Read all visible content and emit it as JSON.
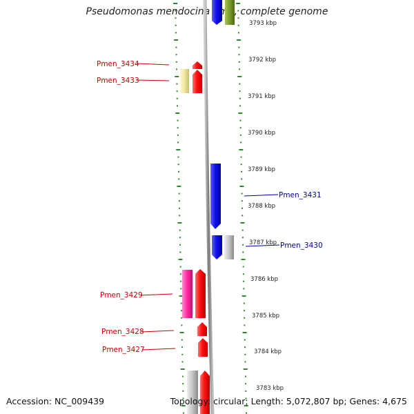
{
  "title": "Pseudomonas mendocina ymp, complete genome",
  "accession": "Accession: NC_009439",
  "stats": "Topology: circular; Length: 5,072,807 bp; Genes: 4,675",
  "ticks": [
    "3793 kbp",
    "3792 kbp",
    "3791 kbp",
    "3790 kbp",
    "3789 kbp",
    "3788 kbp",
    "3787 kbp",
    "3786 kbp",
    "3785 kbp",
    "3784 kbp",
    "3783 kbp"
  ],
  "genes": [
    {
      "label": "Pmen_3434",
      "strand": "reverse",
      "color": "#cc0000"
    },
    {
      "label": "Pmen_3433",
      "strand": "reverse",
      "color": "#cc0000"
    },
    {
      "label": "Pmen_3431",
      "strand": "forward",
      "color": "#000099"
    },
    {
      "label": "Pmen_3430",
      "strand": "forward",
      "color": "#000099"
    },
    {
      "label": "Pmen_3429",
      "strand": "reverse",
      "color": "#cc0000"
    },
    {
      "label": "Pmen_3428",
      "strand": "reverse",
      "color": "#cc0000"
    },
    {
      "label": "Pmen_3427",
      "strand": "reverse",
      "color": "#cc0000"
    }
  ],
  "colors": {
    "reverse_gene": "#ee0000",
    "forward_gene": "#0000ee",
    "pseudo": "#bbbbbb",
    "ncrna": "#ff2aa0",
    "pale": "#f2e7a0",
    "olive": "#7a9a2a",
    "dots": "#2a8a2a"
  }
}
